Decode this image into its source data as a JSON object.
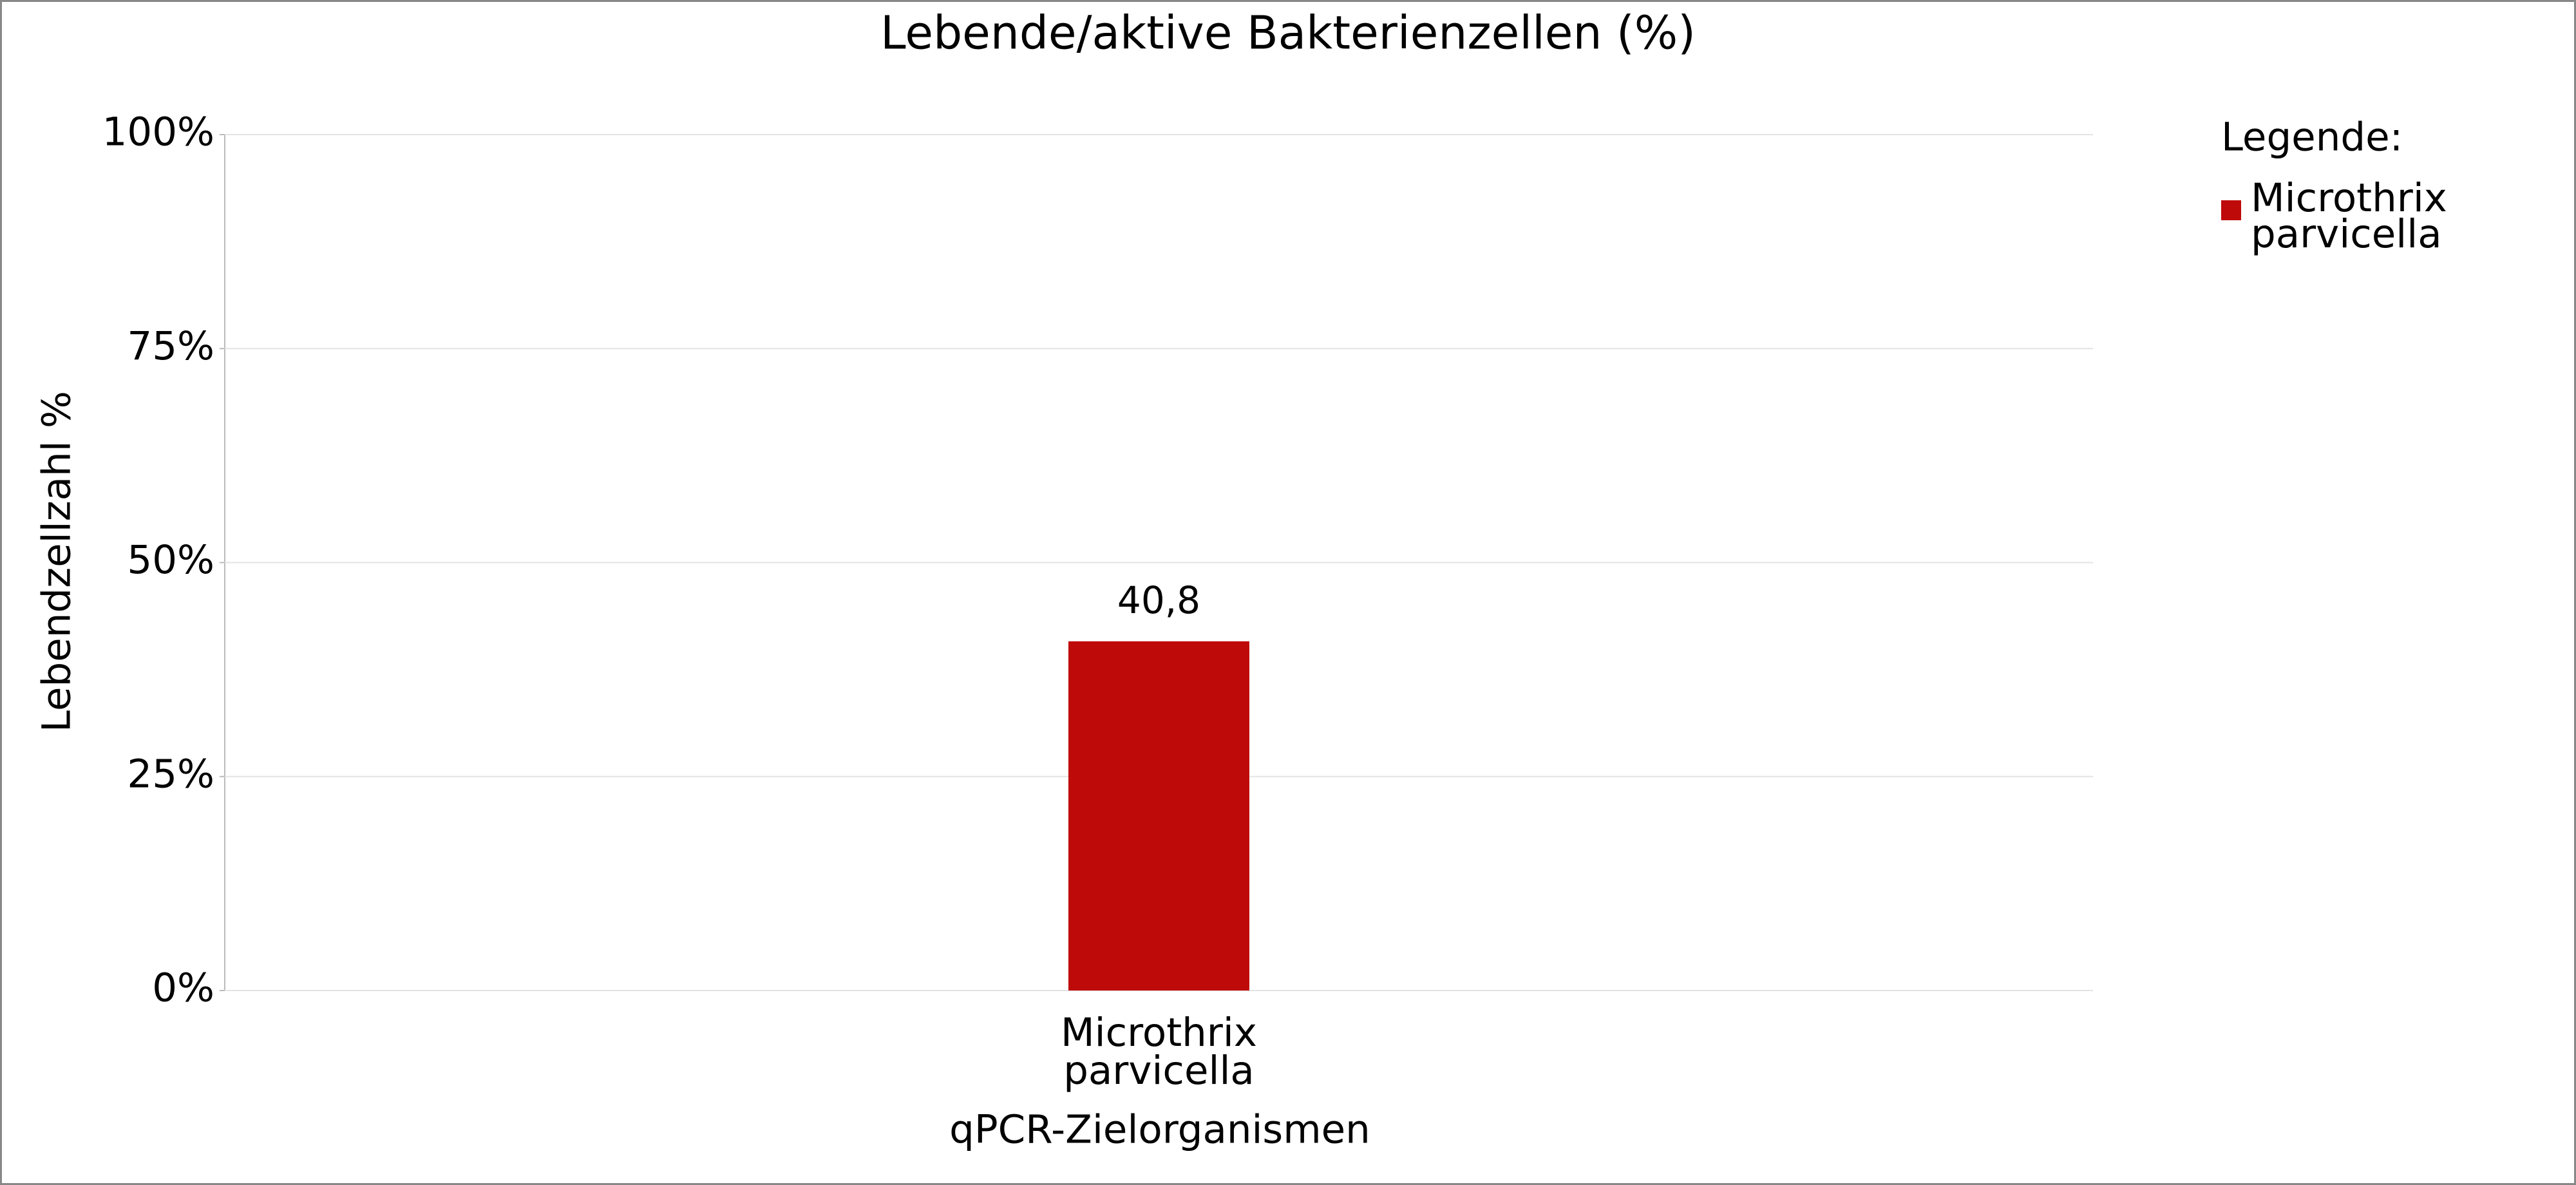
{
  "chart_data": {
    "type": "bar",
    "title": "Lebende/aktive Bakterienzellen (%)",
    "y_label": "Lebendzellzahl %",
    "x_label": "qPCR-Zielorganismen",
    "legend_title": "Legende:",
    "categories": [
      "Microthrix parvicella"
    ],
    "series": [
      {
        "name": "Microthrix parvicella",
        "color": "#bf0a0a",
        "values": [
          40.8
        ],
        "value_labels": [
          "40,8"
        ]
      }
    ],
    "ylim": [
      0,
      100
    ],
    "yticks": [
      {
        "value": 0,
        "label": "0%"
      },
      {
        "value": 25,
        "label": "25%"
      },
      {
        "value": 50,
        "label": "50%"
      },
      {
        "value": 75,
        "label": "75%"
      },
      {
        "value": 100,
        "label": "100%"
      }
    ],
    "grid": true,
    "legend": "right"
  }
}
